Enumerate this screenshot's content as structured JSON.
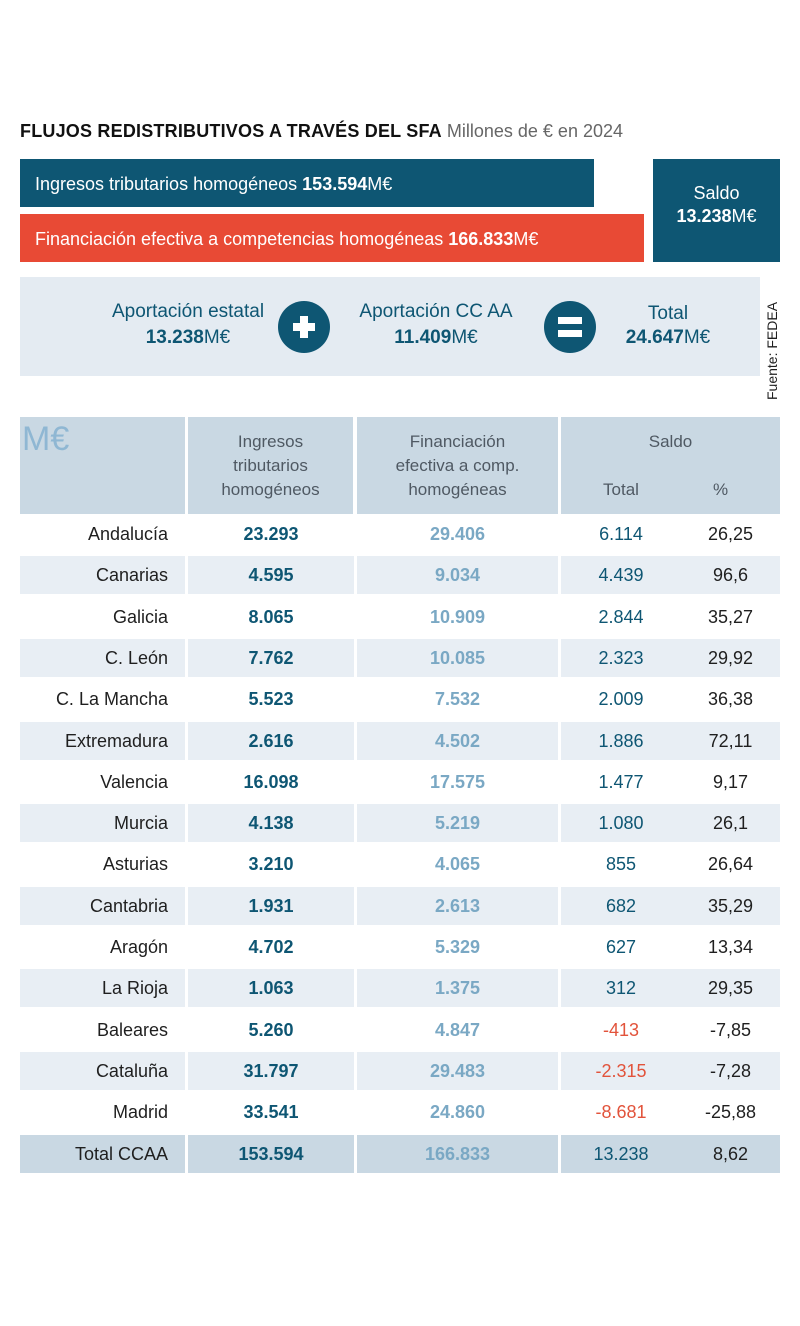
{
  "title": {
    "main": "FLUJOS REDISTRIBUTIVOS A TRAVÉS DEL SFA",
    "sub": "Millones de € en 2024"
  },
  "bars": {
    "ingresos_label": "Ingresos tributarios homogéneos",
    "ingresos_value": "153.594",
    "financiacion_label": "Financiación efectiva a competencias homogéneas",
    "financiacion_value": "166.833",
    "unit": "M€"
  },
  "saldo": {
    "label": "Saldo",
    "value": "13.238",
    "unit": "M€"
  },
  "aportaciones": {
    "estatal_label": "Aportación estatal",
    "estatal_value": "13.238",
    "ccaa_label": "Aportación CC AA",
    "ccaa_value": "11.409",
    "total_label": "Total",
    "total_value": "24.647",
    "unit": "M€",
    "plus_icon": "plus-circle-icon",
    "equals_icon": "equals-circle-icon"
  },
  "source": "Fuente: FEDEA",
  "colors": {
    "dark_blue": "#0e5673",
    "red": "#e84a35",
    "light_blue": "#7aa8c4",
    "negative": "#e2533b",
    "header_bg": "#c9d8e3",
    "row_alt_bg": "#e8eef4"
  },
  "chart_data": {
    "type": "table",
    "unit_label": "M€",
    "columns": {
      "ingresos": [
        "Ingresos",
        "tributarios",
        "homogéneos"
      ],
      "financiacion": [
        "Financiación",
        "efectiva a comp.",
        "homogéneas"
      ],
      "saldo": "Saldo",
      "saldo_total": "Total",
      "saldo_pct": "%"
    },
    "rows": [
      {
        "name": "Andalucía",
        "ingresos": "23.293",
        "financiacion": "29.406",
        "total": "6.114",
        "pct": "26,25"
      },
      {
        "name": "Canarias",
        "ingresos": "4.595",
        "financiacion": "9.034",
        "total": "4.439",
        "pct": "96,6"
      },
      {
        "name": "Galicia",
        "ingresos": "8.065",
        "financiacion": "10.909",
        "total": "2.844",
        "pct": "35,27"
      },
      {
        "name": "C. León",
        "ingresos": "7.762",
        "financiacion": "10.085",
        "total": "2.323",
        "pct": "29,92"
      },
      {
        "name": "C. La Mancha",
        "ingresos": "5.523",
        "financiacion": "7.532",
        "total": "2.009",
        "pct": "36,38"
      },
      {
        "name": "Extremadura",
        "ingresos": "2.616",
        "financiacion": "4.502",
        "total": "1.886",
        "pct": "72,11"
      },
      {
        "name": "Valencia",
        "ingresos": "16.098",
        "financiacion": "17.575",
        "total": "1.477",
        "pct": "9,17"
      },
      {
        "name": "Murcia",
        "ingresos": "4.138",
        "financiacion": "5.219",
        "total": "1.080",
        "pct": "26,1"
      },
      {
        "name": "Asturias",
        "ingresos": "3.210",
        "financiacion": "4.065",
        "total": "855",
        "pct": "26,64"
      },
      {
        "name": "Cantabria",
        "ingresos": "1.931",
        "financiacion": "2.613",
        "total": "682",
        "pct": "35,29"
      },
      {
        "name": "Aragón",
        "ingresos": "4.702",
        "financiacion": "5.329",
        "total": "627",
        "pct": "13,34"
      },
      {
        "name": "La Rioja",
        "ingresos": "1.063",
        "financiacion": "1.375",
        "total": "312",
        "pct": "29,35"
      },
      {
        "name": "Baleares",
        "ingresos": "5.260",
        "financiacion": "4.847",
        "total": "-413",
        "pct": "-7,85"
      },
      {
        "name": "Cataluña",
        "ingresos": "31.797",
        "financiacion": "29.483",
        "total": "-2.315",
        "pct": "-7,28"
      },
      {
        "name": "Madrid",
        "ingresos": "33.541",
        "financiacion": "24.860",
        "total": "-8.681",
        "pct": "-25,88"
      }
    ],
    "total_row": {
      "name": "Total CCAA",
      "ingresos": "153.594",
      "financiacion": "166.833",
      "total": "13.238",
      "pct": "8,62"
    }
  }
}
